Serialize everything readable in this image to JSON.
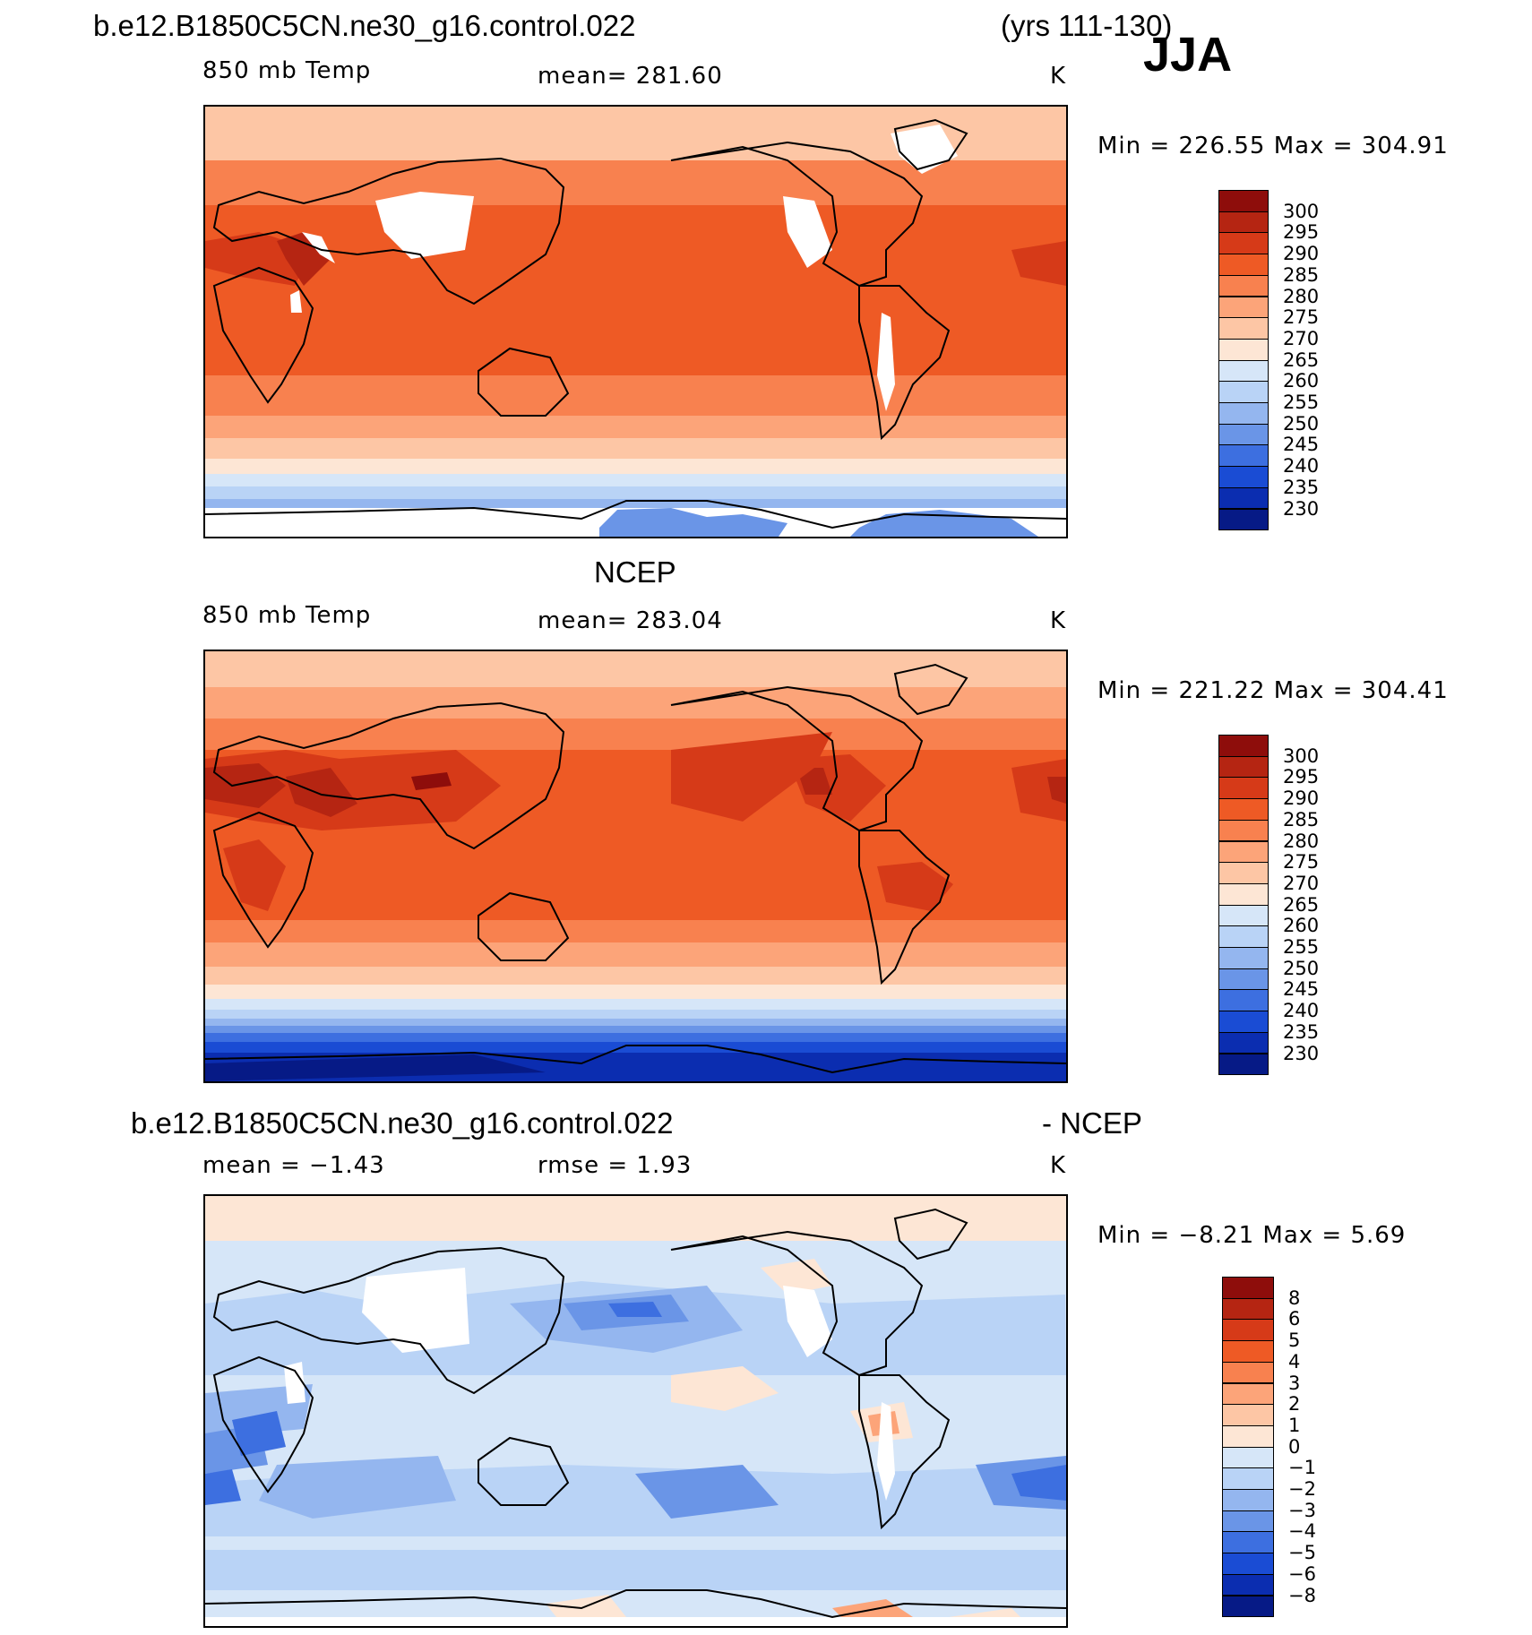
{
  "header": {
    "case_name": "b.e12.B1850C5CN.ne30_g16.control.022",
    "years": "(yrs 111-130)",
    "season": "JJA"
  },
  "panels": [
    {
      "title": "",
      "left_label": "850 mb Temp",
      "center_label": "mean=  281.60",
      "units": "K",
      "minmax": "Min  =  226.55  Max  =  304.91",
      "colorbar_ticks": [
        "300",
        "295",
        "290",
        "285",
        "280",
        "275",
        "270",
        "265",
        "260",
        "255",
        "250",
        "245",
        "240",
        "235",
        "230"
      ],
      "colorbar_colors": [
        "#8e0d0b",
        "#b52512",
        "#d63a18",
        "#ee5a25",
        "#f8814f",
        "#fca479",
        "#fdc6a5",
        "#fde6d5",
        "#d6e6f8",
        "#b9d3f6",
        "#94b6ef",
        "#6a95e7",
        "#3d6fe0",
        "#1a4cd4",
        "#0b2db0",
        "#061a86"
      ],
      "stats": {
        "mean": 281.6,
        "min": 226.55,
        "max": 304.91
      }
    },
    {
      "title": "NCEP",
      "left_label": "850 mb Temp",
      "center_label": "mean=  283.04",
      "units": "K",
      "minmax": "Min  =  221.22  Max  =  304.41",
      "colorbar_ticks": [
        "300",
        "295",
        "290",
        "285",
        "280",
        "275",
        "270",
        "265",
        "260",
        "255",
        "250",
        "245",
        "240",
        "235",
        "230"
      ],
      "colorbar_colors": [
        "#8e0d0b",
        "#b52512",
        "#d63a18",
        "#ee5a25",
        "#f8814f",
        "#fca479",
        "#fdc6a5",
        "#fde6d5",
        "#d6e6f8",
        "#b9d3f6",
        "#94b6ef",
        "#6a95e7",
        "#3d6fe0",
        "#1a4cd4",
        "#0b2db0",
        "#061a86"
      ],
      "stats": {
        "mean": 283.04,
        "min": 221.22,
        "max": 304.41
      }
    },
    {
      "title_left": "b.e12.B1850C5CN.ne30_g16.control.022",
      "title_right": "- NCEP",
      "left_label": "mean  =    −1.43",
      "center_label": "rmse  =     1.93",
      "units": "K",
      "minmax": "Min  =    −8.21  Max  =     5.69",
      "colorbar_ticks": [
        "8",
        "6",
        "5",
        "4",
        "3",
        "2",
        "1",
        "0",
        "−1",
        "−2",
        "−3",
        "−4",
        "−5",
        "−6",
        "−8"
      ],
      "colorbar_colors": [
        "#8e0d0b",
        "#b52512",
        "#d63a18",
        "#ee5a25",
        "#f8814f",
        "#fca479",
        "#fdc6a5",
        "#fde6d5",
        "#d6e6f8",
        "#b9d3f6",
        "#94b6ef",
        "#6a95e7",
        "#3d6fe0",
        "#1a4cd4",
        "#0b2db0",
        "#061a86"
      ],
      "stats": {
        "mean": -1.43,
        "rmse": 1.93,
        "min": -8.21,
        "max": 5.69
      }
    }
  ]
}
